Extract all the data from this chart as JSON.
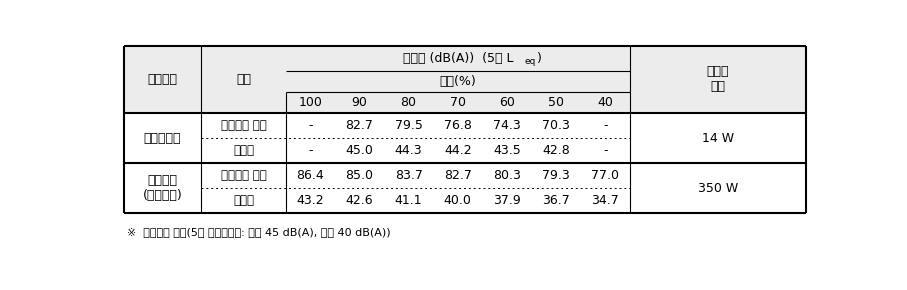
{
  "header_row1_col1": "생활음원",
  "header_row1_col2": "구분",
  "header_top_main": "소음도 (dB(A))  (5분 L",
  "header_top_sub": "eq",
  "header_top_close": ")",
  "header_row2": "볼륨(%)",
  "header_volumes": [
    "100",
    "90",
    "80",
    "70",
    "60",
    "50",
    "40"
  ],
  "header_last": "스피커\n출력",
  "rows": [
    {
      "source": "전자피아노",
      "sub1_label": "생활음원 공간",
      "sub1_values": [
        "-",
        "82.7",
        "79.5",
        "76.8",
        "74.3",
        "70.3",
        "-"
      ],
      "sub2_label": "아래층",
      "sub2_values": [
        "-",
        "45.0",
        "44.3",
        "44.2",
        "43.5",
        "42.8",
        "-"
      ],
      "power": "14 W"
    },
    {
      "source": "음향기기\n(사운드바)",
      "sub1_label": "생활음원 공간",
      "sub1_values": [
        "86.4",
        "85.0",
        "83.7",
        "82.7",
        "80.3",
        "79.3",
        "77.0"
      ],
      "sub2_label": "아래층",
      "sub2_values": [
        "43.2",
        "42.6",
        "41.1",
        "40.0",
        "37.9",
        "36.7",
        "34.7"
      ],
      "power": "350 W"
    }
  ],
  "footnote": "※  공기전달 소음(5분 등가소음도: 주간 45 dB(A), 야간 40 dB(A))",
  "header_bg": "#ececec",
  "lw_outer": 1.5,
  "lw_inner": 0.8,
  "lw_dot": 0.7,
  "fs_main": 9.0,
  "fs_sub": 8.5,
  "fs_small": 6.5,
  "fs_footnote": 8.0
}
